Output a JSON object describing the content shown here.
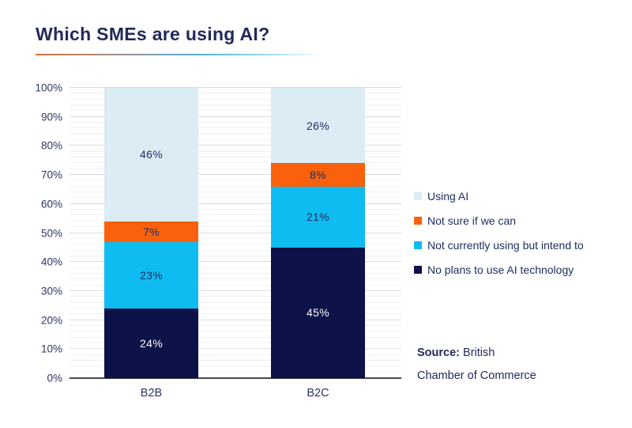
{
  "title": "Which SMEs are using AI?",
  "colors": {
    "navy": "#0D1249",
    "cyan": "#0FBCF2",
    "orange": "#F9610D",
    "pale_blue": "#DCECF5",
    "title_text": "#23295A",
    "axis_text": "#2D3566",
    "label_on_dark": "#FFFFFF",
    "label_on_light": "#1D2B5E",
    "grid_major": "#D9DCE1",
    "grid_minor": "#EEF1F5",
    "axis_line": "#43474D"
  },
  "chart_data": {
    "type": "bar",
    "stacked": true,
    "units": "percent",
    "label_suffix": "%",
    "categories": [
      "B2B",
      "B2C"
    ],
    "series": [
      {
        "name": "No plans to use AI technology",
        "color_key": "navy",
        "values": [
          24,
          45
        ],
        "label_color_key": "label_on_dark"
      },
      {
        "name": "Not currently using but intend to",
        "color_key": "cyan",
        "values": [
          23,
          21
        ],
        "label_color_key": "label_on_light"
      },
      {
        "name": "Not sure if we can",
        "color_key": "orange",
        "values": [
          7,
          8
        ],
        "label_color_key": "label_on_light"
      },
      {
        "name": "Using AI",
        "color_key": "pale_blue",
        "values": [
          46,
          26
        ],
        "label_color_key": "label_on_light"
      }
    ],
    "y_axis": {
      "min": 0,
      "max": 100,
      "major_step": 10,
      "minor_step": 2,
      "tick_labels": [
        "0%",
        "10%",
        "20%",
        "30%",
        "40%",
        "50%",
        "60%",
        "70%",
        "80%",
        "90%",
        "100%"
      ]
    },
    "grid": "on",
    "legend_position": "right",
    "title": "Which SMEs are using AI?",
    "xlabel": "",
    "ylabel": ""
  },
  "legend": {
    "items": [
      {
        "label": "Using AI",
        "color_key": "pale_blue"
      },
      {
        "label": "Not sure if we can",
        "color_key": "orange"
      },
      {
        "label": "Not currently using but intend to",
        "color_key": "cyan"
      },
      {
        "label": "No plans to use AI technology",
        "color_key": "navy"
      }
    ]
  },
  "source": {
    "label": "Source:",
    "line1_rest": " British",
    "line2": "Chamber of Commerce"
  }
}
